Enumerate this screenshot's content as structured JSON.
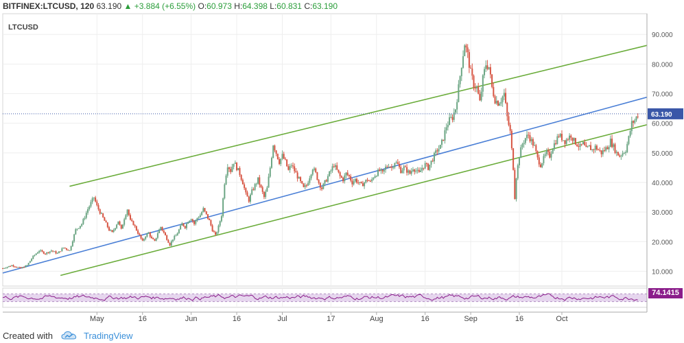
{
  "header": {
    "symbol": "BITFINEX:LTCUSD, 120",
    "last": "63.190",
    "change_arrow": "▲",
    "change": "+3.884 (+6.55%)",
    "o_label": "O:",
    "o_val": "60.973",
    "h_label": "H:",
    "h_val": "64.398",
    "l_label": "L:",
    "l_val": "60.831",
    "c_label": "C:",
    "c_val": "63.190"
  },
  "pane_label": "LTCUSD",
  "footer": {
    "created": "Created with",
    "brand": "TradingView",
    "logo_icon": "tradingview-cloud-icon"
  },
  "chart_data": {
    "type": "candlestick",
    "symbol": "LTCUSD",
    "exchange": "BITFINEX",
    "interval": "120",
    "ylim": [
      5,
      97
    ],
    "yticks": [
      10,
      20,
      30,
      40,
      50,
      60,
      70,
      80,
      90
    ],
    "ytick_labels": [
      "10.000",
      "20.000",
      "30.000",
      "40.000",
      "50.000",
      "60.000",
      "70.000",
      "80.000",
      "90.000"
    ],
    "xtick_labels": [
      "May",
      "16",
      "Jun",
      "16",
      "Jul",
      "17",
      "Aug",
      "16",
      "Sep",
      "16",
      "Oct"
    ],
    "xtick_days": [
      31,
      46,
      62,
      77,
      92,
      108,
      123,
      139,
      154,
      170,
      184
    ],
    "xlim_days": [
      0,
      212
    ],
    "grid": true,
    "last_price": 63.19,
    "up_color": "#6ba583",
    "down_color": "#d75442",
    "price_path": [
      [
        0,
        11
      ],
      [
        3,
        12
      ],
      [
        6,
        11
      ],
      [
        8,
        12
      ],
      [
        10,
        15
      ],
      [
        12,
        17
      ],
      [
        14,
        16
      ],
      [
        16,
        17
      ],
      [
        18,
        16
      ],
      [
        20,
        18
      ],
      [
        22,
        17
      ],
      [
        24,
        24
      ],
      [
        26,
        26
      ],
      [
        28,
        31
      ],
      [
        29,
        33
      ],
      [
        30,
        35
      ],
      [
        31,
        32
      ],
      [
        32,
        30
      ],
      [
        33,
        28
      ],
      [
        34,
        26
      ],
      [
        35,
        24
      ],
      [
        36,
        23
      ],
      [
        37,
        25
      ],
      [
        38,
        27
      ],
      [
        39,
        24
      ],
      [
        40,
        28
      ],
      [
        41,
        31
      ],
      [
        42,
        27
      ],
      [
        43,
        26
      ],
      [
        44,
        24
      ],
      [
        45,
        22
      ],
      [
        46,
        20
      ],
      [
        47,
        22
      ],
      [
        48,
        23
      ],
      [
        49,
        21
      ],
      [
        50,
        20
      ],
      [
        51,
        23
      ],
      [
        52,
        25
      ],
      [
        53,
        23
      ],
      [
        54,
        21
      ],
      [
        55,
        19
      ],
      [
        56,
        21
      ],
      [
        57,
        22
      ],
      [
        58,
        24
      ],
      [
        59,
        26
      ],
      [
        60,
        25
      ],
      [
        61,
        27
      ],
      [
        62,
        28
      ],
      [
        63,
        26
      ],
      [
        64,
        28
      ],
      [
        65,
        29
      ],
      [
        66,
        31
      ],
      [
        67,
        29
      ],
      [
        68,
        27
      ],
      [
        69,
        24
      ],
      [
        70,
        22
      ],
      [
        71,
        25
      ],
      [
        72,
        29
      ],
      [
        73,
        40
      ],
      [
        74,
        46
      ],
      [
        75,
        44
      ],
      [
        76,
        47
      ],
      [
        77,
        45
      ],
      [
        78,
        43
      ],
      [
        79,
        40
      ],
      [
        80,
        36
      ],
      [
        81,
        34
      ],
      [
        82,
        37
      ],
      [
        83,
        39
      ],
      [
        84,
        41
      ],
      [
        85,
        38
      ],
      [
        86,
        35
      ],
      [
        87,
        38
      ],
      [
        88,
        45
      ],
      [
        89,
        53
      ],
      [
        90,
        50
      ],
      [
        91,
        47
      ],
      [
        92,
        49
      ],
      [
        93,
        47
      ],
      [
        94,
        44
      ],
      [
        95,
        46
      ],
      [
        96,
        44
      ],
      [
        97,
        42
      ],
      [
        98,
        40
      ],
      [
        99,
        38
      ],
      [
        100,
        39
      ],
      [
        101,
        42
      ],
      [
        102,
        45
      ],
      [
        103,
        43
      ],
      [
        104,
        40
      ],
      [
        105,
        38
      ],
      [
        106,
        40
      ],
      [
        107,
        42
      ],
      [
        108,
        44
      ],
      [
        109,
        46
      ],
      [
        110,
        44
      ],
      [
        111,
        42
      ],
      [
        112,
        41
      ],
      [
        113,
        43
      ],
      [
        114,
        42
      ],
      [
        115,
        40
      ],
      [
        116,
        41
      ],
      [
        117,
        40
      ],
      [
        118,
        39
      ],
      [
        119,
        40
      ],
      [
        120,
        41
      ],
      [
        121,
        40
      ],
      [
        122,
        42
      ],
      [
        123,
        43
      ],
      [
        124,
        44
      ],
      [
        125,
        43
      ],
      [
        126,
        45
      ],
      [
        127,
        46
      ],
      [
        128,
        45
      ],
      [
        129,
        47
      ],
      [
        130,
        46
      ],
      [
        131,
        44
      ],
      [
        132,
        45
      ],
      [
        133,
        44
      ],
      [
        134,
        43
      ],
      [
        135,
        45
      ],
      [
        136,
        44
      ],
      [
        137,
        43
      ],
      [
        138,
        45
      ],
      [
        139,
        46
      ],
      [
        140,
        45
      ],
      [
        141,
        47
      ],
      [
        142,
        49
      ],
      [
        143,
        51
      ],
      [
        144,
        52
      ],
      [
        145,
        55
      ],
      [
        146,
        59
      ],
      [
        147,
        61
      ],
      [
        148,
        62
      ],
      [
        149,
        65
      ],
      [
        150,
        72
      ],
      [
        151,
        80
      ],
      [
        152,
        87
      ],
      [
        153,
        83
      ],
      [
        154,
        77
      ],
      [
        155,
        73
      ],
      [
        156,
        72
      ],
      [
        157,
        67
      ],
      [
        158,
        75
      ],
      [
        159,
        80
      ],
      [
        160,
        79
      ],
      [
        161,
        72
      ],
      [
        162,
        68
      ],
      [
        163,
        67
      ],
      [
        164,
        68
      ],
      [
        165,
        70
      ],
      [
        166,
        62
      ],
      [
        167,
        57
      ],
      [
        168,
        45
      ],
      [
        168.5,
        35
      ],
      [
        169,
        42
      ],
      [
        170,
        49
      ],
      [
        171,
        53
      ],
      [
        172,
        55
      ],
      [
        173,
        56
      ],
      [
        174,
        54
      ],
      [
        175,
        52
      ],
      [
        176,
        48
      ],
      [
        177,
        46
      ],
      [
        178,
        48
      ],
      [
        179,
        50
      ],
      [
        180,
        49
      ],
      [
        181,
        52
      ],
      [
        182,
        54
      ],
      [
        183,
        56
      ],
      [
        184,
        55
      ],
      [
        185,
        54
      ],
      [
        186,
        55
      ],
      [
        187,
        56
      ],
      [
        188,
        54
      ],
      [
        189,
        53
      ],
      [
        190,
        52
      ],
      [
        191,
        53
      ],
      [
        192,
        51
      ],
      [
        193,
        52
      ],
      [
        194,
        51
      ],
      [
        195,
        52
      ],
      [
        196,
        51
      ],
      [
        197,
        50
      ],
      [
        198,
        51
      ],
      [
        199,
        52
      ],
      [
        200,
        54
      ],
      [
        201,
        52
      ],
      [
        202,
        50
      ],
      [
        203,
        49
      ],
      [
        204,
        50
      ],
      [
        205,
        51
      ],
      [
        206,
        55
      ],
      [
        207,
        60
      ],
      [
        208,
        61
      ],
      [
        209,
        63
      ]
    ],
    "price_line": 63.19,
    "trendlines": [
      {
        "name": "upper-channel",
        "color": "#6aac3a",
        "from": [
          22,
          38.7
        ],
        "to": [
          212,
          86.3
        ]
      },
      {
        "name": "middle-channel",
        "color": "#4a7fd6",
        "from": [
          0,
          9.4
        ],
        "to": [
          212,
          68.8
        ]
      },
      {
        "name": "lower-channel",
        "color": "#6aac3a",
        "from": [
          19,
          8.6
        ],
        "to": [
          212,
          59.5
        ]
      }
    ],
    "rsi": {
      "name": "RSI",
      "last_label": "74.1415",
      "color": "#8a1d8a",
      "band_fill": "#e6d6ee",
      "upper": 70,
      "lower": 30
    }
  }
}
